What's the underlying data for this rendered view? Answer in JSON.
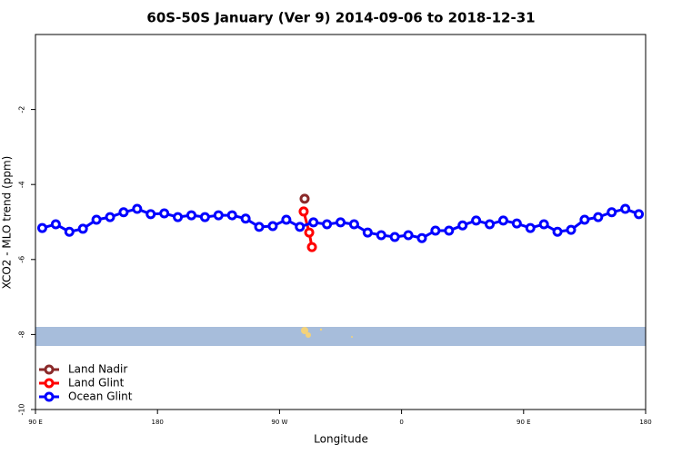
{
  "chart_data": {
    "type": "line",
    "title": "60S-50S January (Ver 9)   2014-09-06 to 2018-12-31",
    "x_label": "Longitude",
    "y_label": "XCO2 - MLO trend (ppm)",
    "xlim": [
      90,
      540
    ],
    "xticks": [
      {
        "value": 90,
        "label": "90 E"
      },
      180,
      {
        "value": 270,
        "label": "90 W"
      },
      {
        "value": 360,
        "label": "0"
      },
      {
        "value": 450,
        "label": "90 E"
      },
      {
        "value": 540,
        "label": "180"
      }
    ],
    "ylim": [
      -10,
      0
    ],
    "yticks": [
      -10,
      -8,
      -6,
      -4,
      -2
    ],
    "legend": "bottom-left",
    "series": [
      {
        "name": "Land Nadir",
        "color": "#8b2a2a",
        "x": [
          288.5
        ],
        "values": [
          -4.38
        ]
      },
      {
        "name": "Land Glint",
        "color": "#ff0000",
        "x": [
          287.8,
          291.9,
          293.9
        ],
        "values": [
          -4.72,
          -5.28,
          -5.67
        ]
      },
      {
        "name": "Ocean Glint",
        "color": "#0000ff",
        "x": [
          95,
          105,
          115,
          125,
          135,
          145,
          155,
          165,
          175,
          185,
          195,
          205,
          215,
          225,
          235,
          245,
          255,
          265,
          275,
          285,
          295,
          305,
          315,
          325,
          335,
          345,
          355,
          365,
          375,
          385,
          395,
          405,
          415,
          425,
          435,
          445,
          455,
          465,
          475,
          485,
          495,
          505,
          515,
          525,
          535
        ],
        "values": [
          -5.16,
          -5.06,
          -5.26,
          -5.18,
          -4.94,
          -4.87,
          -4.74,
          -4.65,
          -4.79,
          -4.77,
          -4.87,
          -4.82,
          -4.87,
          -4.82,
          -4.82,
          -4.91,
          -5.13,
          -5.11,
          -4.94,
          -5.13,
          -5.01,
          -5.06,
          -5.01,
          -5.06,
          -5.28,
          -5.35,
          -5.4,
          -5.35,
          -5.43,
          -5.23,
          -5.23,
          -5.09,
          -4.96,
          -5.06,
          -4.96,
          -5.04,
          -5.16,
          -5.06,
          -5.26,
          -5.21,
          -4.94,
          -4.87,
          -4.74,
          -4.65,
          -4.79
        ]
      }
    ]
  }
}
